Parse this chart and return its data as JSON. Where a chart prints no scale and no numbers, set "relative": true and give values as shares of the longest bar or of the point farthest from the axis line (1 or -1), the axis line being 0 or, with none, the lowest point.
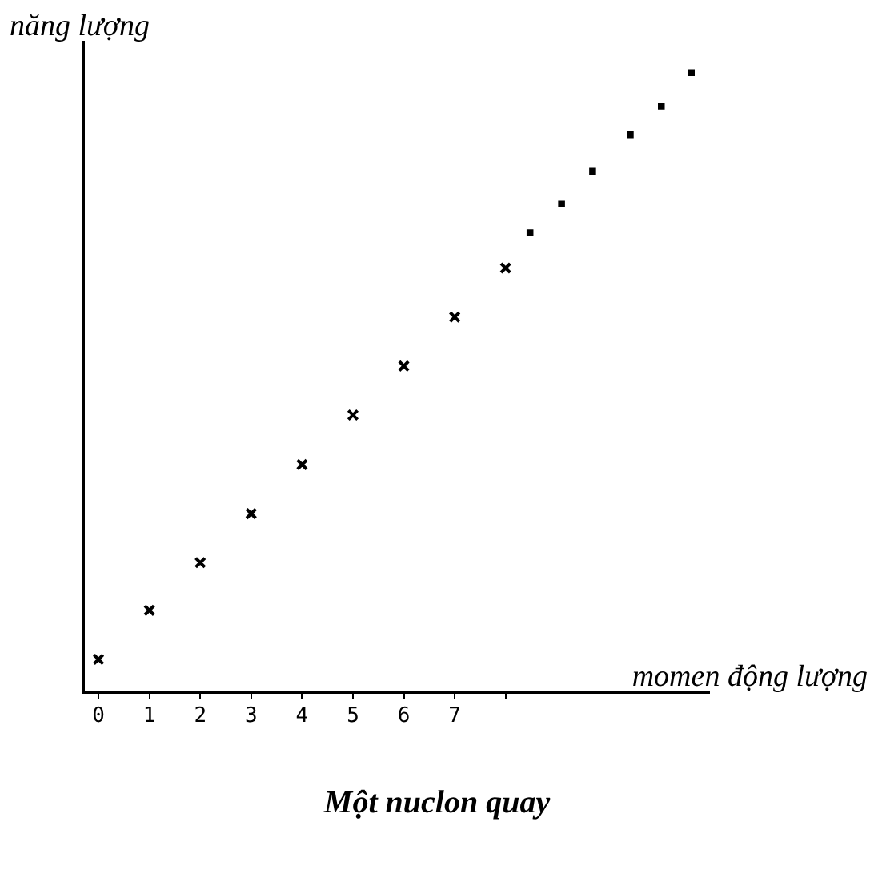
{
  "chart_data": {
    "type": "scatter",
    "title": "Một nuclon quay",
    "xlabel": "momen động lượng",
    "ylabel": "năng lượng",
    "relative": true,
    "xlim": [
      -0.3,
      12
    ],
    "xticks": [
      0,
      1,
      2,
      3,
      4,
      5,
      6,
      7,
      {
        "value": 8,
        "label": null
      }
    ],
    "grid": false,
    "legend": false,
    "series": [
      {
        "color": "#000000",
        "marker": "cross",
        "x": [
          0,
          1,
          2,
          3,
          4,
          5,
          6,
          7,
          8
        ],
        "values": [
          0.054,
          0.133,
          0.21,
          0.289,
          0.368,
          0.448,
          0.527,
          0.606,
          0.685
        ]
      },
      {
        "color": "#000000",
        "marker": "square",
        "x": [
          8.48,
          9.1,
          9.71,
          10.45,
          11.06,
          11.65
        ],
        "values": [
          0.742,
          0.788,
          0.841,
          0.9,
          0.946,
          1
        ]
      }
    ]
  }
}
